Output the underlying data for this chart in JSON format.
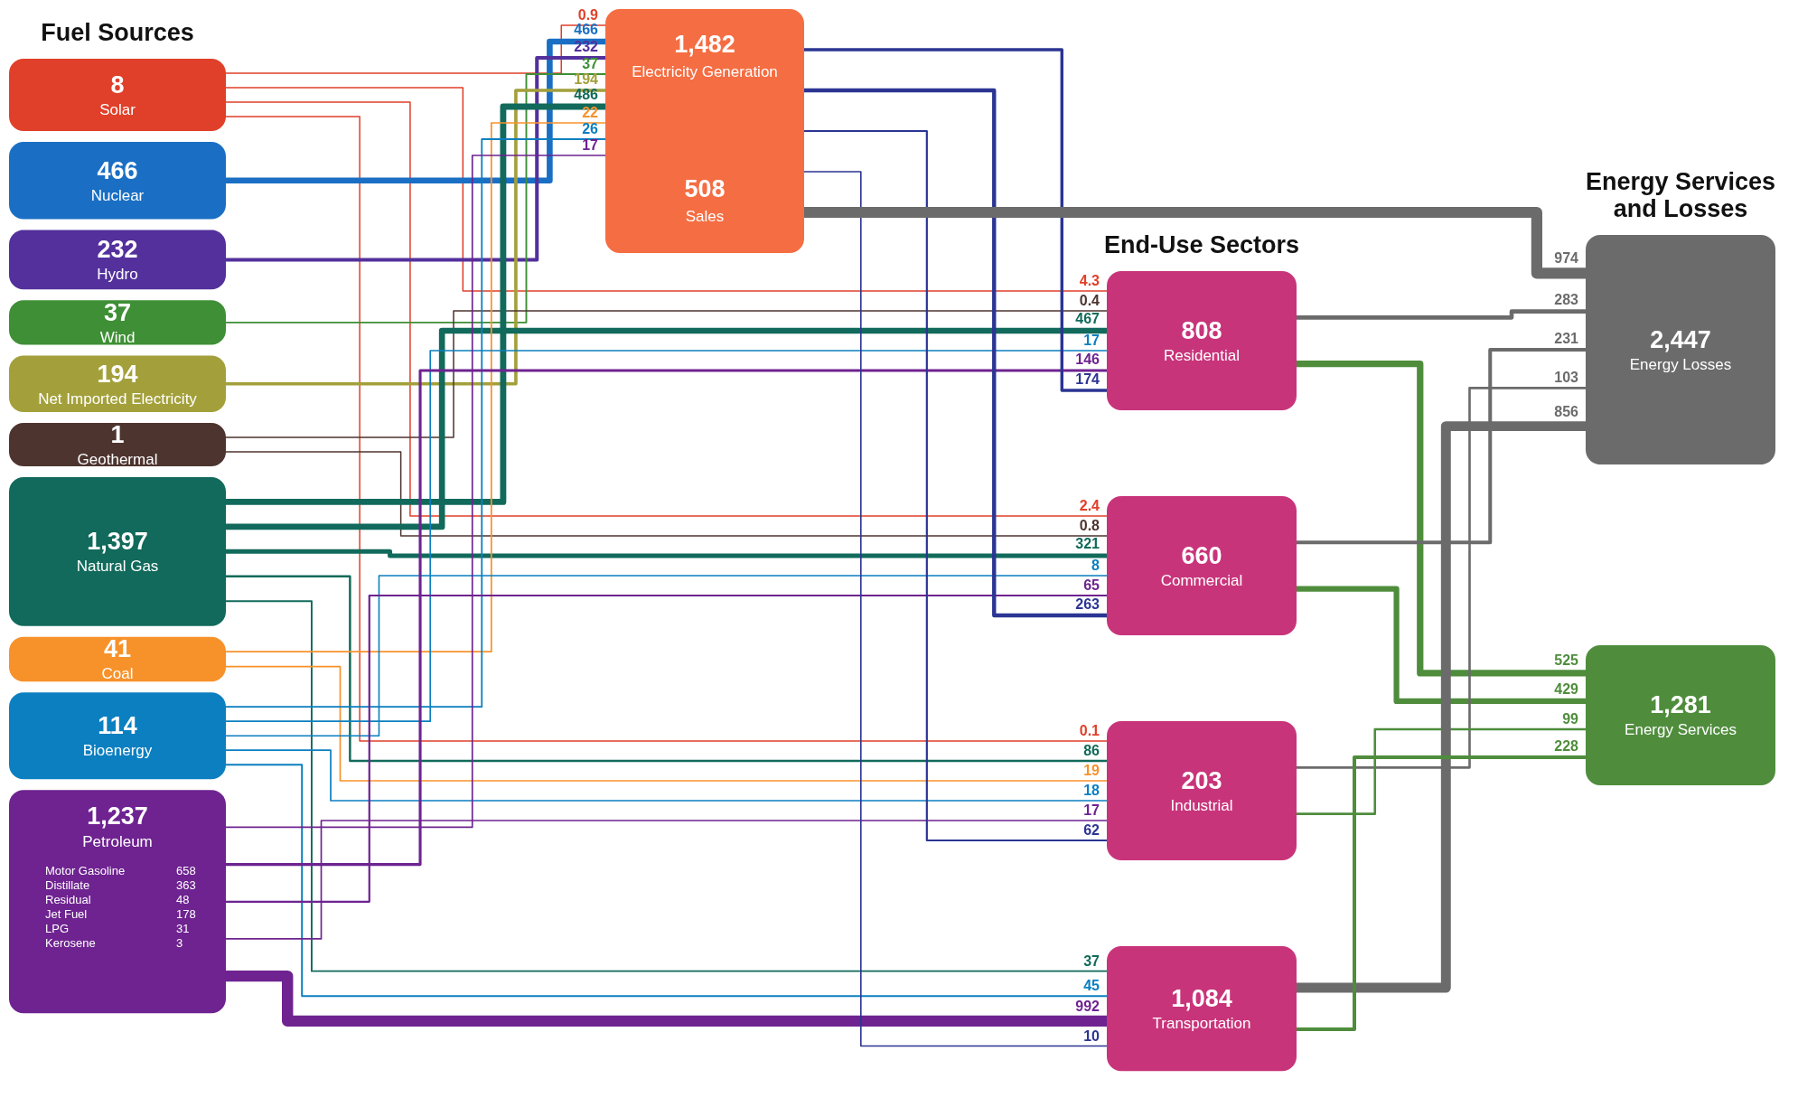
{
  "chart_data": [
    {
      "type": "other",
      "data_labels": true,
      "annotations": [
        "Fuel Sources",
        "End-Use Sectors",
        "Energy Services and Losses"
      ],
      "categories": [
        "Solar",
        "Nuclear",
        "Hydro",
        "Wind",
        "Net Imported Electricity",
        "Geothermal",
        "Natural Gas",
        "Coal",
        "Bioenergy",
        "Petroleum",
        "Electricity Generation",
        "Sales",
        "Residential",
        "Commercial",
        "Industrial",
        "Transportation",
        "Energy Losses",
        "Energy Services"
      ],
      "values": [
        8,
        466,
        232,
        37,
        194,
        1,
        1397,
        41,
        114,
        1237,
        1482,
        508,
        808,
        660,
        203,
        1084,
        2447,
        1281
      ],
      "value_labels": [
        "8",
        "466",
        "232",
        "37",
        "194",
        "1",
        "1,397",
        "41",
        "114",
        "1,237",
        "1,482",
        "508",
        "808",
        "660",
        "203",
        "1,084",
        "2,447",
        "1,281"
      ],
      "colors": [
        "#e0402a",
        "#1a6fc4",
        "#53309c",
        "#3e8f35",
        "#a3a03b",
        "#4d342f",
        "#116a5b",
        "#f7922b",
        "#0b7fc0",
        "#6e2390",
        "#f56d42",
        "#f56d42",
        "#c8347a",
        "#c8347a",
        "#c8347a",
        "#c8347a",
        "#6b6b6b",
        "#4f8d3c"
      ],
      "series": [
        {
          "color": "#e0402a",
          "values": [
            null,
            null,
            null,
            null,
            null,
            null,
            null,
            null,
            null,
            null,
            0.9,
            null,
            4.3,
            2.4,
            0.1,
            null,
            null,
            null
          ]
        },
        {
          "color": "#1a6fc4",
          "values": [
            null,
            null,
            null,
            null,
            null,
            null,
            null,
            null,
            null,
            null,
            466,
            null,
            null,
            null,
            null,
            null,
            null,
            null
          ]
        },
        {
          "color": "#53309c",
          "values": [
            null,
            null,
            null,
            null,
            null,
            null,
            null,
            null,
            null,
            null,
            232,
            null,
            null,
            null,
            null,
            null,
            null,
            null
          ]
        },
        {
          "color": "#3e8f35",
          "values": [
            null,
            null,
            null,
            null,
            null,
            null,
            null,
            null,
            null,
            null,
            37,
            null,
            null,
            null,
            null,
            null,
            null,
            null
          ]
        },
        {
          "color": "#a3a03b",
          "values": [
            null,
            null,
            null,
            null,
            null,
            null,
            null,
            null,
            null,
            null,
            194,
            null,
            null,
            null,
            null,
            null,
            null,
            null
          ]
        },
        {
          "color": "#4d342f",
          "values": [
            null,
            null,
            null,
            null,
            null,
            null,
            null,
            null,
            null,
            null,
            null,
            null,
            0.4,
            0.8,
            null,
            null,
            null,
            null
          ]
        },
        {
          "color": "#116a5b",
          "values": [
            null,
            null,
            null,
            null,
            null,
            null,
            null,
            null,
            null,
            null,
            486,
            null,
            467,
            321,
            86,
            37,
            null,
            null
          ]
        },
        {
          "color": "#f7922b",
          "values": [
            null,
            null,
            null,
            null,
            null,
            null,
            null,
            null,
            null,
            null,
            22,
            null,
            null,
            null,
            19,
            null,
            null,
            null
          ]
        },
        {
          "color": "#0b7fc0",
          "values": [
            null,
            null,
            null,
            null,
            null,
            null,
            null,
            null,
            null,
            null,
            26,
            null,
            17,
            8,
            18,
            45,
            null,
            null
          ]
        },
        {
          "color": "#6e2390",
          "values": [
            null,
            null,
            null,
            null,
            null,
            null,
            null,
            null,
            null,
            null,
            17,
            null,
            146,
            65,
            17,
            992,
            null,
            null
          ]
        },
        {
          "colors": [
            null,
            null,
            null,
            null,
            null,
            null,
            null,
            null,
            null,
            null,
            null,
            null,
            "#2b3593",
            "#2b3593",
            "#2b3593",
            "#2b3593",
            "#6b6b6b",
            null
          ],
          "values": [
            null,
            null,
            null,
            null,
            null,
            null,
            null,
            null,
            null,
            null,
            null,
            null,
            174,
            263,
            62,
            10,
            974,
            null
          ]
        },
        {
          "values": [
            null,
            null,
            null,
            null,
            null,
            null,
            null,
            null,
            null,
            null,
            null,
            null,
            null,
            null,
            null,
            null,
            null,
            null
          ]
        },
        {
          "colors": [
            null,
            null,
            null,
            null,
            null,
            null,
            null,
            null,
            null,
            null,
            null,
            null,
            null,
            null,
            null,
            null,
            "#6b6b6b",
            "#4f8d3c"
          ],
          "values": [
            null,
            null,
            null,
            null,
            null,
            null,
            null,
            null,
            null,
            null,
            null,
            null,
            null,
            null,
            null,
            null,
            283,
            525
          ]
        },
        {
          "colors": [
            null,
            null,
            null,
            null,
            null,
            null,
            null,
            null,
            null,
            null,
            null,
            null,
            null,
            null,
            null,
            null,
            "#6b6b6b",
            "#4f8d3c"
          ],
          "values": [
            null,
            null,
            null,
            null,
            null,
            null,
            null,
            null,
            null,
            null,
            null,
            null,
            null,
            null,
            null,
            null,
            231,
            429
          ]
        },
        {
          "colors": [
            null,
            null,
            null,
            null,
            null,
            null,
            null,
            null,
            null,
            null,
            null,
            null,
            null,
            null,
            null,
            null,
            "#6b6b6b",
            "#4f8d3c"
          ],
          "values": [
            null,
            null,
            null,
            null,
            null,
            null,
            null,
            null,
            null,
            null,
            null,
            null,
            null,
            null,
            null,
            null,
            103,
            99
          ]
        },
        {
          "colors": [
            null,
            null,
            null,
            null,
            null,
            null,
            null,
            null,
            null,
            null,
            null,
            null,
            null,
            null,
            null,
            null,
            "#6b6b6b",
            "#4f8d3c"
          ],
          "values": [
            null,
            null,
            null,
            null,
            null,
            null,
            null,
            null,
            null,
            null,
            null,
            null,
            null,
            null,
            null,
            null,
            856,
            228
          ]
        }
      ]
    },
    {
      "type": "other",
      "data_labels": true,
      "categories": [
        "Motor Gasoline",
        "Distillate",
        "Residual",
        "Jet Fuel",
        "LPG",
        "Kerosene"
      ],
      "values": [
        658,
        363,
        48,
        178,
        31,
        3
      ]
    }
  ]
}
